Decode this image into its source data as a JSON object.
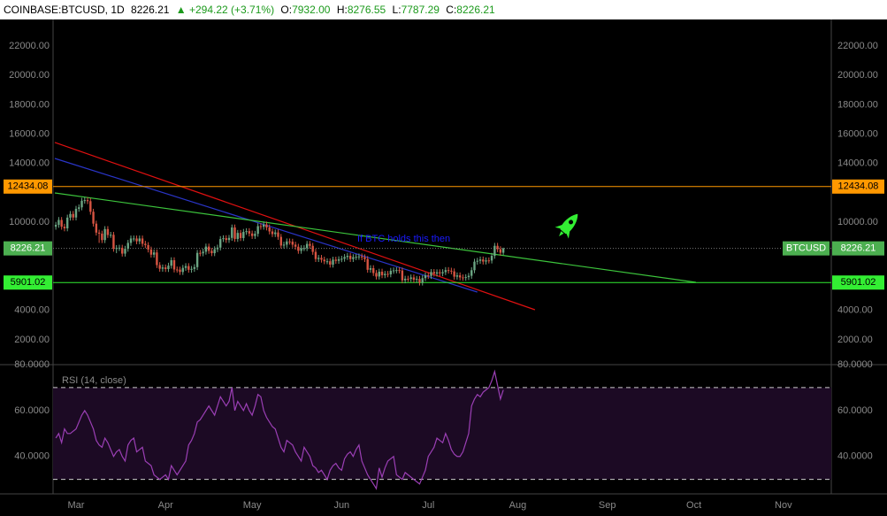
{
  "header": {
    "symbol": "COINBASE:BTCUSD, 1D",
    "last": "8226.21",
    "change": "▲ +294.22 (+3.71%)",
    "ohlc": [
      {
        "label": "O:",
        "value": "7932.00"
      },
      {
        "label": "H:",
        "value": "8276.55"
      },
      {
        "label": "L:",
        "value": "7787.29"
      },
      {
        "label": "C:",
        "value": "8226.21"
      }
    ]
  },
  "chart_data": [
    {
      "type": "candlestick",
      "up_color": "#6ba583",
      "down_color": "#d75442",
      "xlim": [
        -0.96,
        268.6
      ],
      "xticks": [
        {
          "value": 7,
          "label": "Mar"
        },
        {
          "value": 38,
          "label": "Apr"
        },
        {
          "value": 68,
          "label": "May"
        },
        {
          "value": 99,
          "label": "Jun"
        },
        {
          "value": 129,
          "label": "Jul"
        },
        {
          "value": 160,
          "label": "Aug"
        },
        {
          "value": 191,
          "label": "Sep"
        },
        {
          "value": 221,
          "label": "Oct"
        },
        {
          "value": 252,
          "label": "Nov"
        }
      ],
      "ylim": [
        313,
        23807
      ],
      "yticks": [
        {
          "value": 2000,
          "label": "2000.00"
        },
        {
          "value": 4000,
          "label": "4000.00"
        },
        {
          "value": 10000,
          "label": "10000.00"
        },
        {
          "value": 14000,
          "label": "14000.00"
        },
        {
          "value": 16000,
          "label": "16000.00"
        },
        {
          "value": 18000,
          "label": "18000.00"
        },
        {
          "value": 20000,
          "label": "20000.00"
        },
        {
          "value": 22000,
          "label": "22000.00"
        }
      ],
      "grid": false,
      "open": [
        9700,
        9830,
        10160,
        9700,
        9590,
        10320,
        10570,
        10330,
        10920,
        11020,
        11470,
        11510,
        11440,
        10720,
        9910,
        9300,
        9230,
        8790,
        9540,
        9140,
        9150,
        8200,
        8250,
        8270,
        7870,
        8200,
        8600,
        8900,
        8900,
        8710,
        8900,
        8540,
        8450,
        8150,
        7800,
        7950,
        7090,
        6840,
        6930,
        6820,
        7050,
        7420,
        6790,
        6780,
        6620,
        6900,
        7020,
        6770,
        6830,
        6950,
        7920,
        7890,
        8000,
        8350,
        8060,
        7900,
        8170,
        8280,
        8860,
        8920,
        8800,
        8940,
        9650,
        8870,
        9280,
        8930,
        9350,
        9400,
        9240,
        9070,
        9220,
        9740,
        9700,
        9850,
        9650,
        9380,
        9200,
        9310,
        9010,
        8420,
        8480,
        8700,
        8680,
        8480,
        8340,
        8060,
        8240,
        8240,
        8530,
        8400,
        7990,
        7500,
        7580,
        7460,
        7350,
        7350,
        7120,
        7460,
        7380,
        7490,
        7520,
        7640,
        7720,
        7500,
        7630,
        7650,
        7680,
        7620,
        7500,
        6770,
        6880,
        6550,
        6310,
        6640,
        6400,
        6490,
        6460,
        6700,
        6730,
        6750,
        6720,
        6050,
        6160,
        6150,
        6250,
        6090,
        6150,
        5900,
        6200,
        6390,
        6350,
        6620,
        6510,
        6600,
        6530,
        6610,
        6750,
        6710,
        6660,
        6300,
        6390,
        6250,
        6220,
        6270,
        6360,
        6740,
        7320,
        7380,
        7470,
        7330,
        7410,
        7400,
        7720,
        8400,
        8170,
        7932
      ],
      "high": [
        10030,
        10360,
        10360,
        9900,
        10520,
        10770,
        10770,
        11120,
        11220,
        11670,
        11710,
        11710,
        11640,
        10920,
        10110,
        9500,
        9430,
        9740,
        9740,
        9350,
        9350,
        8450,
        8470,
        8470,
        8400,
        8800,
        9100,
        9100,
        9100,
        9100,
        9100,
        8740,
        8650,
        8350,
        8150,
        8150,
        7290,
        7130,
        7130,
        7250,
        7620,
        7620,
        6990,
        6980,
        7100,
        7220,
        7220,
        7030,
        7150,
        8120,
        8120,
        8200,
        8550,
        8550,
        8260,
        8370,
        8480,
        9060,
        9120,
        9120,
        9140,
        9850,
        9850,
        9480,
        9480,
        9550,
        9600,
        9600,
        9440,
        9420,
        9940,
        9940,
        10050,
        10050,
        9850,
        9580,
        9510,
        9510,
        9210,
        8680,
        8900,
        8900,
        8880,
        8680,
        8540,
        8440,
        8440,
        8730,
        8730,
        8600,
        8190,
        7780,
        7780,
        7660,
        7550,
        7550,
        7660,
        7660,
        7690,
        7720,
        7840,
        7920,
        7920,
        7830,
        7850,
        7880,
        7880,
        7820,
        7700,
        7080,
        7080,
        6750,
        6840,
        6840,
        6690,
        6690,
        6900,
        6930,
        6950,
        6950,
        6920,
        6360,
        6360,
        6450,
        6450,
        6350,
        6350,
        6400,
        6590,
        6590,
        6820,
        6820,
        6800,
        6800,
        6810,
        6950,
        6950,
        6910,
        6860,
        6590,
        6590,
        6450,
        6470,
        6560,
        6940,
        7520,
        7580,
        7670,
        7670,
        7610,
        7610,
        7920,
        8600,
        8600,
        8370,
        8276.55
      ],
      "low": [
        9500,
        9630,
        9500,
        9390,
        9390,
        10120,
        10130,
        10130,
        10720,
        10820,
        11270,
        11240,
        10520,
        9710,
        9100,
        8600,
        8590,
        8590,
        8940,
        8940,
        8000,
        7900,
        8050,
        7670,
        7670,
        8000,
        8400,
        8700,
        8510,
        8510,
        8340,
        8250,
        7950,
        7600,
        7600,
        6890,
        6640,
        6640,
        6620,
        6620,
        6850,
        6590,
        6580,
        6420,
        6420,
        6700,
        6570,
        6570,
        6630,
        6750,
        7690,
        7690,
        7800,
        7860,
        7700,
        7700,
        7970,
        8080,
        8660,
        8600,
        8600,
        8740,
        8670,
        8670,
        8730,
        8730,
        9150,
        9040,
        8870,
        8870,
        9020,
        9500,
        9500,
        9450,
        9180,
        9000,
        9000,
        8810,
        8220,
        8220,
        8280,
        8480,
        8280,
        8140,
        7860,
        7860,
        8040,
        8040,
        8200,
        7790,
        7300,
        7300,
        7260,
        7150,
        7150,
        6920,
        6920,
        7180,
        7180,
        7290,
        7320,
        7440,
        7300,
        7300,
        7430,
        7450,
        7420,
        7300,
        6570,
        6570,
        6350,
        6110,
        6110,
        6200,
        6200,
        6260,
        6260,
        6500,
        6530,
        6520,
        5850,
        5850,
        5950,
        5950,
        5890,
        5890,
        5700,
        5700,
        6000,
        6150,
        6150,
        6310,
        6310,
        6330,
        6330,
        6410,
        6510,
        6460,
        6100,
        6100,
        6050,
        6020,
        6020,
        6070,
        6160,
        6540,
        7120,
        7180,
        7130,
        7130,
        7200,
        7200,
        7520,
        7970,
        7732,
        7787.29
      ],
      "close": [
        9830,
        10160,
        9700,
        9590,
        10320,
        10570,
        10330,
        10920,
        11020,
        11470,
        11510,
        11440,
        10720,
        9910,
        9300,
        9230,
        8790,
        9540,
        9140,
        9150,
        8200,
        8250,
        8270,
        7870,
        8200,
        8600,
        8900,
        8900,
        8710,
        8900,
        8540,
        8450,
        8150,
        7800,
        7950,
        7090,
        6840,
        6930,
        6820,
        7050,
        7420,
        6790,
        6780,
        6620,
        6900,
        7020,
        6770,
        6830,
        6950,
        7920,
        7890,
        8000,
        8350,
        8060,
        7900,
        8170,
        8280,
        8860,
        8920,
        8800,
        8940,
        9650,
        8870,
        9280,
        8930,
        9350,
        9400,
        9240,
        9070,
        9220,
        9740,
        9700,
        9850,
        9650,
        9380,
        9200,
        9310,
        9010,
        8420,
        8480,
        8700,
        8680,
        8480,
        8340,
        8060,
        8240,
        8240,
        8530,
        8400,
        7990,
        7500,
        7580,
        7460,
        7350,
        7350,
        7120,
        7460,
        7380,
        7490,
        7520,
        7640,
        7720,
        7500,
        7630,
        7650,
        7680,
        7620,
        7500,
        6770,
        6880,
        6550,
        6310,
        6640,
        6400,
        6490,
        6460,
        6700,
        6730,
        6750,
        6720,
        6050,
        6160,
        6150,
        6250,
        6090,
        6150,
        5900,
        6200,
        6390,
        6350,
        6620,
        6510,
        6600,
        6530,
        6610,
        6750,
        6710,
        6660,
        6300,
        6390,
        6250,
        6220,
        6270,
        6360,
        6740,
        7320,
        7380,
        7470,
        7330,
        7410,
        7400,
        7720,
        8400,
        8170,
        7932,
        8226.21
      ],
      "levels": [
        {
          "value": 12434.08,
          "color": "#ff9800"
        },
        {
          "value": 8226.21,
          "color": "#4caf50",
          "name": "BTCUSD"
        },
        {
          "value": 5901.02,
          "color": "#33ee33"
        }
      ],
      "trendlines": [
        {
          "color": "#e01010",
          "x": [
            -0.35,
            165.96
          ],
          "y": [
            15434,
            4048
          ]
        },
        {
          "color": "#2a35c8",
          "x": [
            -0.35,
            146
          ],
          "y": [
            14349,
            5253
          ]
        },
        {
          "color": "#3cc43c",
          "x": [
            -0.35,
            221.7
          ],
          "y": [
            12000,
            5916
          ]
        }
      ],
      "annotation": {
        "text": "If BTC holds this then",
        "color": "#1a1aff"
      }
    },
    {
      "type": "line",
      "title": "RSI (14, close)",
      "color": "#9b3fb5",
      "ylim": [
        23.7,
        80
      ],
      "yticks": [
        {
          "value": 40,
          "label": "40.0000"
        },
        {
          "value": 60,
          "label": "60.0000"
        },
        {
          "value": 80,
          "label": "80.0000"
        }
      ],
      "bands": [
        70,
        30
      ],
      "values": [
        48,
        50,
        46,
        52,
        50,
        50,
        51,
        52,
        55,
        58,
        60,
        58,
        55,
        52,
        47,
        45,
        44,
        48,
        46,
        43,
        40,
        42,
        43,
        40,
        38,
        45,
        47,
        48,
        42,
        43,
        44,
        38,
        37,
        36,
        32,
        31,
        30,
        31,
        32,
        30,
        36,
        34,
        32,
        34,
        36,
        38,
        45,
        47,
        50,
        55,
        56,
        58,
        60,
        62,
        60,
        58,
        62,
        66,
        64,
        62,
        64,
        70,
        60,
        64,
        62,
        60,
        63,
        60,
        58,
        62,
        67,
        66,
        60,
        57,
        55,
        53,
        52,
        48,
        44,
        42,
        47,
        46,
        45,
        42,
        40,
        38,
        44,
        42,
        40,
        36,
        35,
        33,
        34,
        32,
        30,
        34,
        36,
        37,
        35,
        34,
        39,
        41,
        42,
        40,
        43,
        45,
        38,
        35,
        32,
        30,
        28,
        26,
        35,
        31,
        35,
        38,
        39,
        40,
        32,
        31,
        30,
        33,
        32,
        31,
        30,
        29,
        28,
        31,
        34,
        40,
        42,
        44,
        48,
        47,
        46,
        50,
        47,
        43,
        41,
        40,
        40,
        42,
        46,
        50,
        62,
        65,
        67,
        66,
        68,
        69,
        70,
        73,
        77,
        71,
        65,
        69
      ]
    }
  ]
}
